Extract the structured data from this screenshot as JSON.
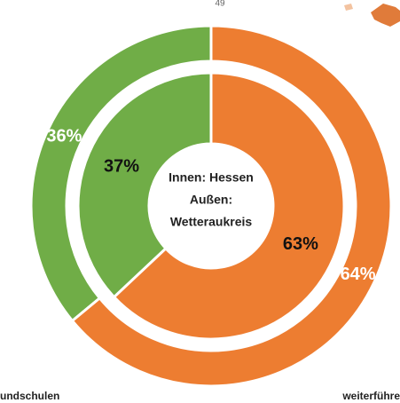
{
  "chart_data": {
    "type": "donut",
    "annotation": "49",
    "center_text": [
      "Innen: Hessen",
      "Außen:",
      "Wetteraukreis"
    ],
    "categories": [
      "undschulen",
      "weiterführe"
    ],
    "colors": [
      "#70ad47",
      "#ed7d31"
    ],
    "series": [
      {
        "values": [
          37,
          63
        ],
        "value_labels": [
          "37%",
          "63%"
        ],
        "label_color": "#111111"
      },
      {
        "values": [
          36,
          64
        ],
        "value_labels": [
          "36%",
          "64%"
        ],
        "label_color": "#ffffff"
      }
    ]
  }
}
